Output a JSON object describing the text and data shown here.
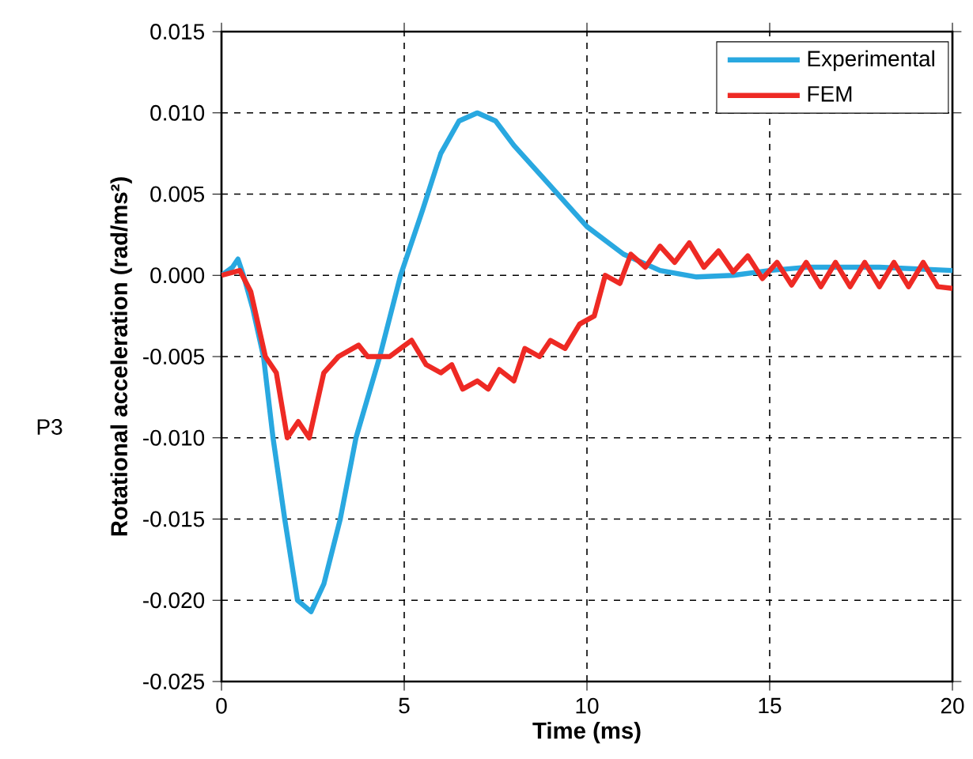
{
  "chart_data": {
    "type": "line",
    "xlabel": "Time (ms)",
    "ylabel": "Rotational acceleration (rad/ms²)",
    "annotations": [
      "P3"
    ],
    "xlim": [
      0,
      20
    ],
    "xticks": [
      0,
      5,
      10,
      15,
      20
    ],
    "ylim": [
      -0.025,
      0.015
    ],
    "yticks": [
      {
        "value": -0.025,
        "label": "-0.025"
      },
      {
        "value": -0.02,
        "label": "-0.020"
      },
      {
        "value": -0.015,
        "label": "-0.015"
      },
      {
        "value": -0.01,
        "label": "-0.010"
      },
      {
        "value": -0.005,
        "label": "-0.005"
      },
      {
        "value": 0,
        "label": "0.000"
      },
      {
        "value": 0.005,
        "label": "0.005"
      },
      {
        "value": 0.01,
        "label": "0.010"
      },
      {
        "value": 0.015,
        "label": "0.015"
      }
    ],
    "grid": true,
    "legend": "top right",
    "marker": "none",
    "line_style": "solid",
    "series": [
      {
        "name": "Experimental",
        "color": "#29a8e0",
        "x": [
          0,
          0.3,
          0.45,
          0.6,
          0.85,
          1.15,
          1.41,
          1.73,
          2.08,
          2.45,
          2.8,
          3.25,
          3.68,
          4.33,
          4.9,
          5.5,
          6.0,
          6.5,
          7.0,
          7.5,
          8.0,
          9.0,
          10.0,
          11.0,
          12.0,
          13.0,
          14.0,
          15.0,
          16.0,
          18.0,
          20.0
        ],
        "values": [
          0,
          0.0005,
          0.001,
          0.0,
          -0.002,
          -0.005,
          -0.01,
          -0.015,
          -0.02,
          -0.0207,
          -0.019,
          -0.015,
          -0.01,
          -0.005,
          0.0,
          0.004,
          0.0075,
          0.0095,
          0.01,
          0.0095,
          0.008,
          0.0055,
          0.003,
          0.0013,
          0.0003,
          -0.0001,
          0.0,
          0.0003,
          0.0005,
          0.0005,
          0.0003
        ]
      },
      {
        "name": "FEM",
        "color": "#ee2a24",
        "x": [
          0,
          0.5,
          0.8,
          1.2,
          1.5,
          1.8,
          2.1,
          2.4,
          2.8,
          3.2,
          3.75,
          4.0,
          4.6,
          5.2,
          5.6,
          6.0,
          6.3,
          6.6,
          7.0,
          7.3,
          7.6,
          8.0,
          8.3,
          8.7,
          9.0,
          9.4,
          9.8,
          10.2,
          10.5,
          10.9,
          11.2,
          11.6,
          12.0,
          12.4,
          12.8,
          13.2,
          13.6,
          14.0,
          14.4,
          14.8,
          15.2,
          15.6,
          16.0,
          16.4,
          16.8,
          17.2,
          17.6,
          18.0,
          18.4,
          18.8,
          19.2,
          19.6,
          20.0
        ],
        "values": [
          0,
          0.0003,
          -0.001,
          -0.005,
          -0.006,
          -0.01,
          -0.009,
          -0.01,
          -0.006,
          -0.005,
          -0.0043,
          -0.005,
          -0.005,
          -0.004,
          -0.0055,
          -0.006,
          -0.0055,
          -0.007,
          -0.0065,
          -0.007,
          -0.0058,
          -0.0065,
          -0.0045,
          -0.005,
          -0.004,
          -0.0045,
          -0.003,
          -0.0025,
          0.0,
          -0.0005,
          0.0013,
          0.0005,
          0.0018,
          0.0008,
          0.002,
          0.0005,
          0.0015,
          0.0002,
          0.0012,
          -0.0002,
          0.0008,
          -0.0006,
          0.0008,
          -0.0007,
          0.0008,
          -0.0007,
          0.0008,
          -0.0007,
          0.0008,
          -0.0007,
          0.0008,
          -0.0007,
          -0.0008
        ]
      }
    ]
  }
}
